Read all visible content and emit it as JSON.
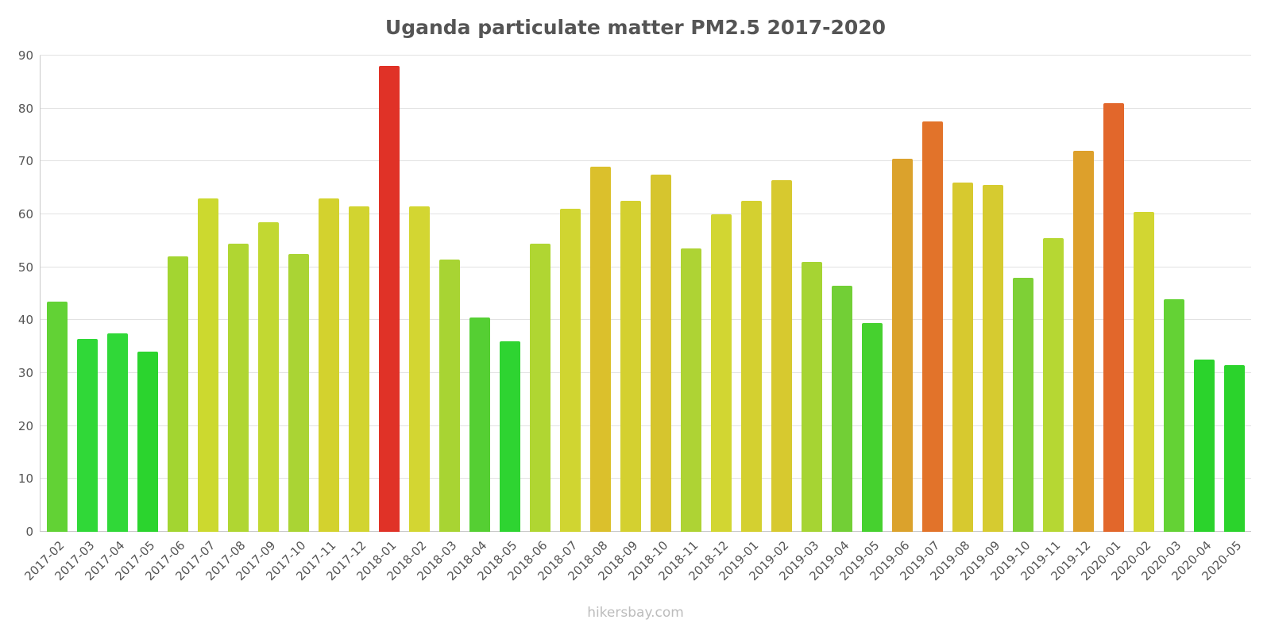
{
  "chart_data": {
    "type": "bar",
    "title": "Uganda particulate matter PM2.5 2017-2020",
    "xlabel": "",
    "ylabel": "",
    "ylim": [
      0,
      90
    ],
    "ytick_step": 10,
    "grid": true,
    "legend": "none",
    "categories": [
      "2017-02",
      "2017-03",
      "2017-04",
      "2017-05",
      "2017-06",
      "2017-07",
      "2017-08",
      "2017-09",
      "2017-10",
      "2017-11",
      "2017-12",
      "2018-01",
      "2018-02",
      "2018-03",
      "2018-04",
      "2018-05",
      "2018-06",
      "2018-07",
      "2018-08",
      "2018-09",
      "2018-10",
      "2018-11",
      "2018-12",
      "2019-01",
      "2019-02",
      "2019-03",
      "2019-04",
      "2019-05",
      "2019-06",
      "2019-07",
      "2019-08",
      "2019-09",
      "2019-10",
      "2019-11",
      "2019-12",
      "2020-01",
      "2020-02",
      "2020-03",
      "2020-04",
      "2020-05"
    ],
    "values": [
      43.5,
      36.5,
      37.5,
      34.0,
      52.0,
      63.0,
      54.5,
      58.5,
      52.5,
      63.0,
      61.5,
      88.0,
      61.5,
      51.5,
      40.5,
      36.0,
      54.5,
      61.0,
      69.0,
      62.5,
      67.5,
      53.5,
      60.0,
      62.5,
      66.5,
      51.0,
      46.5,
      39.5,
      70.5,
      77.5,
      66.0,
      65.5,
      48.0,
      55.5,
      72.0,
      81.0,
      60.5,
      44.0,
      32.5,
      31.5
    ],
    "colors": [
      "#62d235",
      "#30d838",
      "#30d838",
      "#2bd42e",
      "#a3d531",
      "#ccd92f",
      "#b0d632",
      "#c2d832",
      "#aad434",
      "#d3d22e",
      "#d2d430",
      "#e03227",
      "#d3d632",
      "#a8d433",
      "#55cf33",
      "#2ed431",
      "#b0d632",
      "#d0d531",
      "#dbc02c",
      "#d4d030",
      "#d6c52e",
      "#aed334",
      "#d2d632",
      "#d4d030",
      "#d7c92f",
      "#a6d433",
      "#72cf36",
      "#46d12f",
      "#dba22c",
      "#e2732a",
      "#d7c92f",
      "#d6cb30",
      "#7ed036",
      "#b6d733",
      "#dda02b",
      "#e2672b",
      "#d2d632",
      "#64d235",
      "#2bd32c",
      "#2bd32c"
    ]
  },
  "footer": {
    "watermark": "hikersbay.com"
  }
}
